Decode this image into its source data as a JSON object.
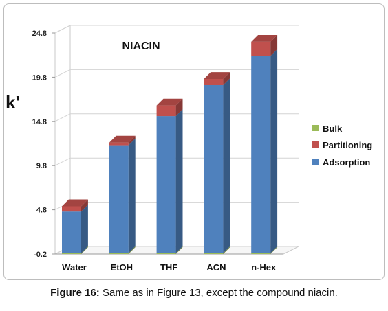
{
  "caption": {
    "label": "Figure 16:",
    "text": " Same as in Figure 13, except the compound niacin."
  },
  "colors": {
    "bulk": "#9bbb59",
    "partitioning": "#c0504d",
    "adsorption": "#4f81bd",
    "grid": "#d4d4d4"
  },
  "chart_data": {
    "type": "bar",
    "stacked": true,
    "three_d": true,
    "title": "NIACIN",
    "ylabel": "k'",
    "xlabel": "",
    "ylim": [
      -0.2,
      24.8
    ],
    "yticks": [
      "-0.2",
      "4.8",
      "9.8",
      "14.8",
      "19.8",
      "24.8"
    ],
    "categories": [
      "Water",
      "EtOH",
      "THF",
      "ACN",
      "n-Hex"
    ],
    "series": [
      {
        "name": "Bulk",
        "values": [
          0.1,
          0.1,
          0.1,
          0.1,
          0.1
        ]
      },
      {
        "name": "Adsorption",
        "values": [
          4.7,
          12.2,
          15.5,
          19.0,
          22.3
        ]
      },
      {
        "name": "Partitioning",
        "values": [
          0.6,
          0.3,
          1.2,
          0.7,
          1.6
        ]
      }
    ],
    "legend": [
      "Bulk",
      "Partitioning",
      "Adsorption"
    ],
    "legend_position": "right",
    "grid": true
  }
}
